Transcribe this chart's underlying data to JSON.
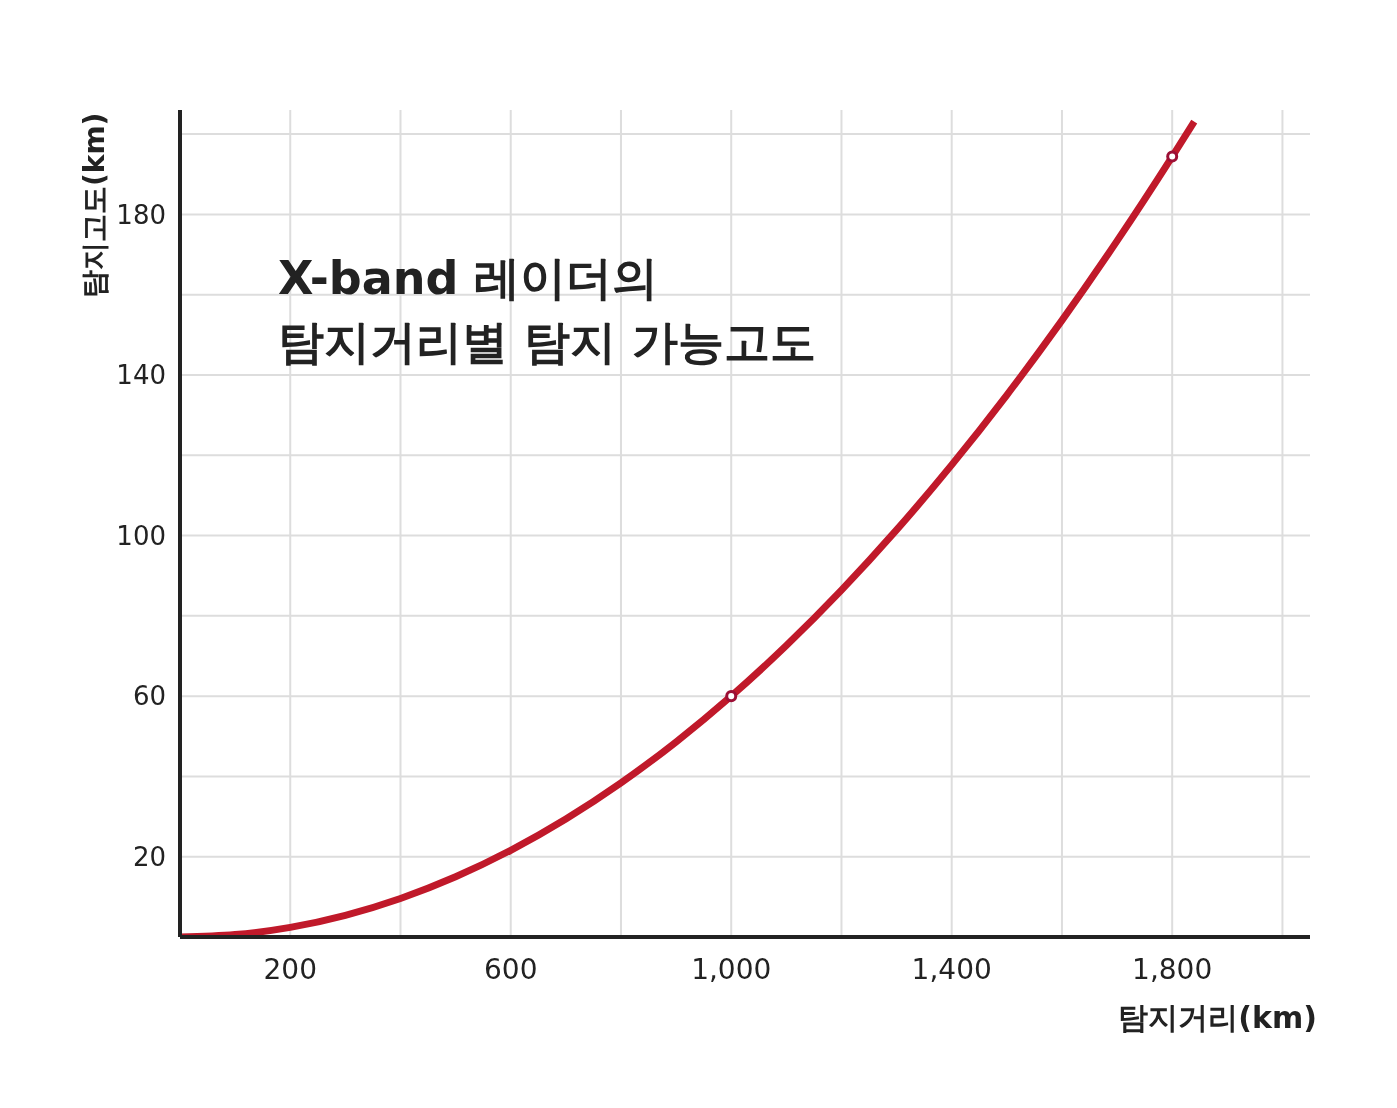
{
  "chart_data": {
    "type": "line",
    "title": "X-band 레이더의\n탐지거리별 탐지 가능고도",
    "xlabel": "탐지거리(km)",
    "ylabel": "탐지고도(km)",
    "series": [
      {
        "color": "#c0192a",
        "x": [
          0,
          100,
          200,
          300,
          400,
          500,
          600,
          700,
          800,
          900,
          1000,
          1100,
          1200,
          1300,
          1400,
          1500,
          1600,
          1700,
          1800,
          1840
        ],
        "values": [
          0,
          0.6,
          2.4,
          5.4,
          9.6,
          15,
          21.6,
          29.4,
          38.4,
          48.6,
          60,
          72.6,
          86.4,
          101.4,
          117.6,
          135,
          153.6,
          173.4,
          194.4,
          203.1
        ]
      },
      {
        "type": "scatter",
        "color": "#9c0f35",
        "marker": "circle",
        "x": [
          1000,
          1800
        ],
        "values": [
          60,
          194.4
        ]
      }
    ],
    "xlim": [
      0,
      2050
    ],
    "ylim": [
      0,
      206
    ],
    "xticks": [
      {
        "value": 200,
        "label": "200"
      },
      {
        "value": 400,
        "label": null
      },
      {
        "value": 600,
        "label": "600"
      },
      {
        "value": 800,
        "label": null
      },
      {
        "value": 1000,
        "label": "1,000"
      },
      {
        "value": 1200,
        "label": null
      },
      {
        "value": 1400,
        "label": "1,400"
      },
      {
        "value": 1600,
        "label": null
      },
      {
        "value": 1800,
        "label": "1,800"
      },
      {
        "value": 2000,
        "label": null
      }
    ],
    "yticks": [
      20,
      {
        "value": 40,
        "label": null
      },
      60,
      {
        "value": 80,
        "label": null
      },
      100,
      {
        "value": 120,
        "label": null
      },
      140,
      {
        "value": 160,
        "label": null
      },
      180,
      {
        "value": 200,
        "label": null
      }
    ],
    "grid": true
  }
}
